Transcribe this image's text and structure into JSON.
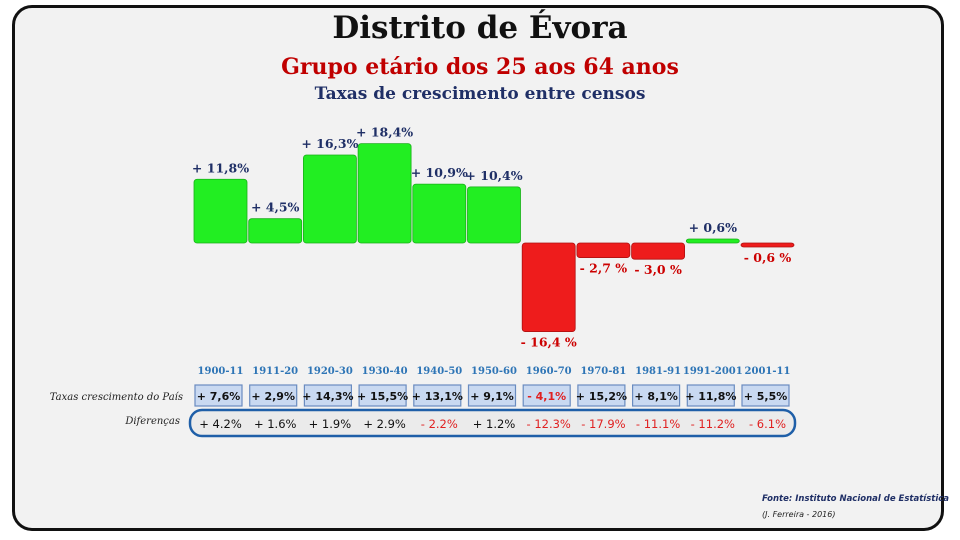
{
  "title": "Distrito de Évora",
  "subtitle": "Grupo etário dos 25 aos 64 anos",
  "subsubtitle": "Taxas de crescimento entre censos",
  "row_labels": {
    "national": "Taxas crescimento do País",
    "differences": "Diferenças"
  },
  "source": "Fonte: Instituto Nacional de Estatística",
  "author": "(J. Ferreira - 2016)",
  "colors": {
    "positive": "#22ee22",
    "negative": "#ee1c1c",
    "positive_label": "#1f2f66",
    "negative_label": "#cc0000",
    "period_label": "#2e75b6",
    "diff_frame": "#1f5fa8"
  },
  "chart_data": {
    "type": "bar",
    "categories": [
      "1900-11",
      "1911-20",
      "1920-30",
      "1930-40",
      "1940-50",
      "1950-60",
      "1960-70",
      "1970-81",
      "1981-91",
      "1991-2001",
      "2001-11"
    ],
    "values": [
      11.8,
      4.5,
      16.3,
      18.4,
      10.9,
      10.4,
      -16.4,
      -2.7,
      -3.0,
      0.6,
      -0.6
    ],
    "value_labels": [
      "+ 11,8%",
      "+ 4,5%",
      "+ 16,3%",
      "+ 18,4%",
      "+ 10,9%",
      "+ 10,4%",
      "- 16,4 %",
      "- 2,7 %",
      "- 3,0 %",
      "+ 0,6%",
      "- 0,6 %"
    ],
    "national_rates": [
      "+ 7,6%",
      "+ 2,9%",
      "+ 14,3%",
      "+ 15,5%",
      "+ 13,1%",
      "+ 9,1%",
      "- 4,1%",
      "+ 15,2%",
      "+ 8,1%",
      "+ 11,8%",
      "+ 5,5%"
    ],
    "differences": [
      "+ 4.2%",
      "+ 1.6%",
      "+ 1.9%",
      "+ 2.9%",
      "- 2.2%",
      "+ 1.2%",
      "- 12.3%",
      "- 17.9%",
      "- 11.1%",
      "- 11.2%",
      "- 6.1%"
    ],
    "grid": false,
    "legend": "none"
  }
}
